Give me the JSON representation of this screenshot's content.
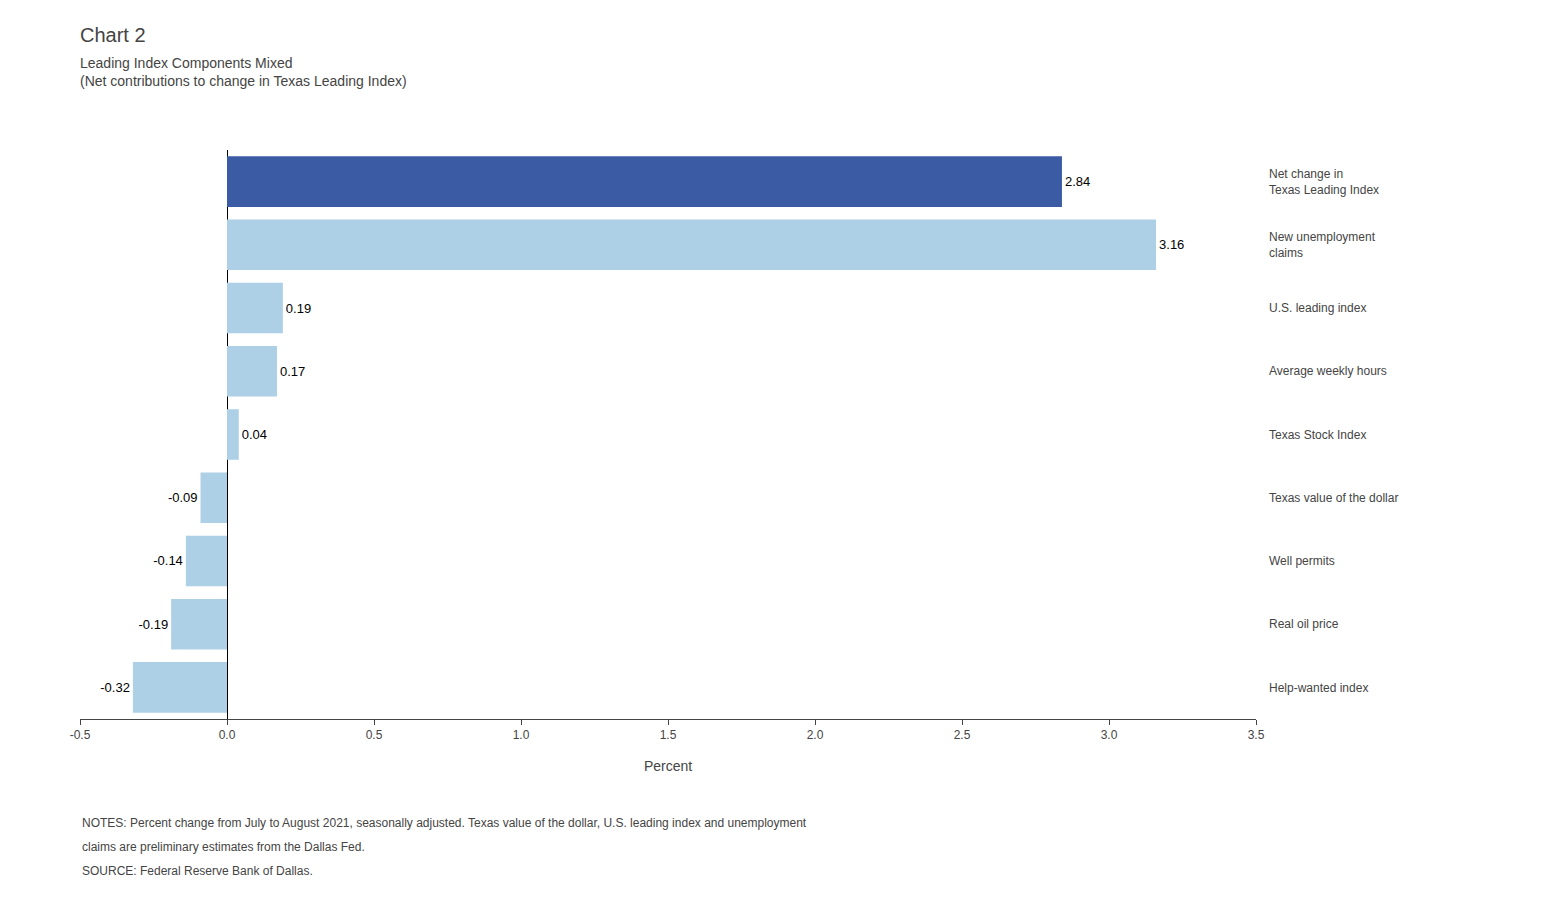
{
  "chart_data": {
    "type": "bar",
    "orientation": "horizontal",
    "title": "Chart 2",
    "subtitle": "Leading Index Components Mixed\n(Net contributions to change in Texas Leading Index)",
    "categories": [
      "Net change in\nTexas Leading Index",
      "New unemployment\nclaims",
      "U.S. leading index",
      "Average weekly hours",
      "Texas Stock Index",
      "Texas value of the dollar",
      "Well permits",
      "Real oil price",
      "Help-wanted index"
    ],
    "values": [
      2.84,
      3.16,
      0.19,
      0.17,
      0.04,
      -0.09,
      -0.14,
      -0.19,
      -0.32
    ],
    "colors": [
      "#3B5BA5",
      "#AED0E6",
      "#AED0E6",
      "#AED0E6",
      "#AED0E6",
      "#AED0E6",
      "#AED0E6",
      "#AED0E6",
      "#AED0E6"
    ],
    "xlabel": "Percent",
    "xlim": [
      -0.5,
      3.5
    ],
    "xticks": [
      -0.5,
      {
        "value": 0,
        "label": "0.0"
      },
      0.5,
      {
        "value": 1,
        "label": "1.0"
      },
      1.5,
      {
        "value": 2,
        "label": "2.0"
      },
      2.5,
      {
        "value": 3,
        "label": "3.0"
      },
      3.5
    ],
    "grid": false,
    "data_labels": true,
    "annotations": [
      "NOTES: Percent change from July to August 2021, seasonally adjusted. Texas value of the dollar, U.S. leading index and unemployment",
      "claims are preliminary estimates from the Dallas Fed.",
      "SOURCE: Federal Reserve Bank of Dallas."
    ]
  }
}
